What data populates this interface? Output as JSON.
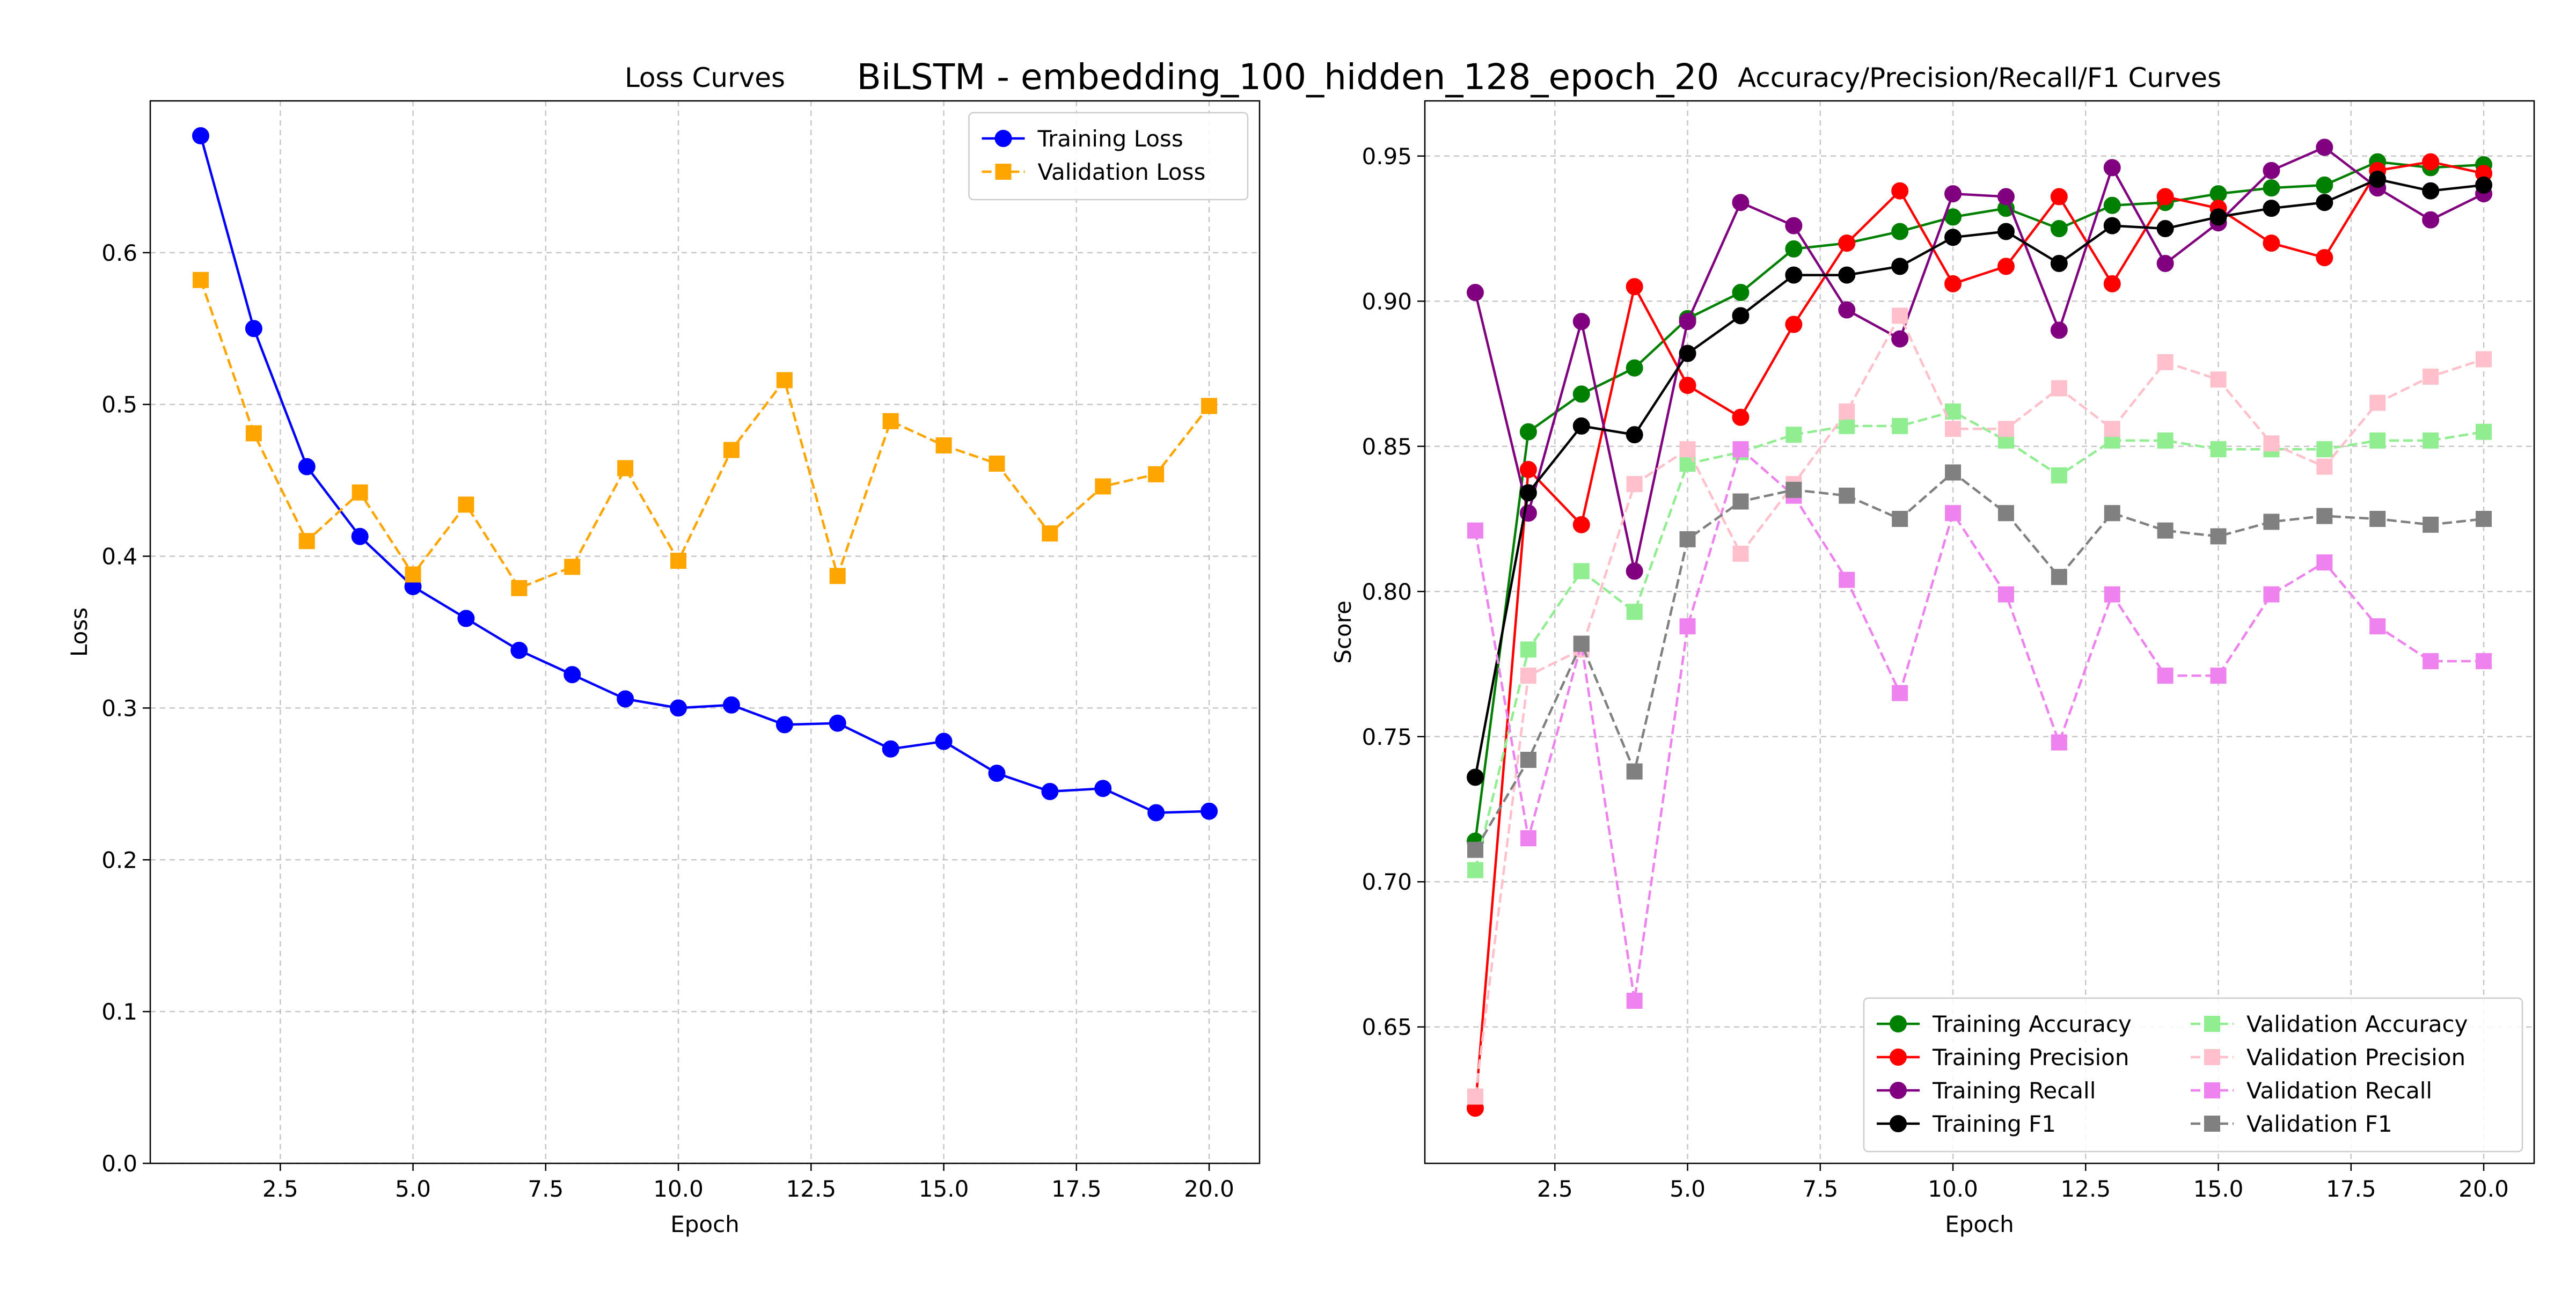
{
  "figure": {
    "suptitle": "BiLSTM - embedding_100_hidden_128_epoch_20"
  },
  "chart_data": [
    {
      "type": "line",
      "title": "Loss Curves",
      "xlabel": "Epoch",
      "ylabel": "Loss",
      "xlim": [
        0.05,
        20.95
      ],
      "ylim": [
        0.0,
        0.7
      ],
      "xticks": [
        2.5,
        5.0,
        7.5,
        10.0,
        12.5,
        15.0,
        17.5,
        20.0
      ],
      "xtick_labels": [
        "2.5",
        "5.0",
        "7.5",
        "10.0",
        "12.5",
        "15.0",
        "17.5",
        "20.0"
      ],
      "yticks": [
        0.0,
        0.1,
        0.2,
        0.3,
        0.4,
        0.5,
        0.6
      ],
      "ytick_labels": [
        "0.0",
        "0.1",
        "0.2",
        "0.3",
        "0.4",
        "0.5",
        "0.6"
      ],
      "grid": true,
      "legend_position": "top-right",
      "legend_columns": 1,
      "x": [
        1,
        2,
        3,
        4,
        5,
        6,
        7,
        8,
        9,
        10,
        11,
        12,
        13,
        14,
        15,
        16,
        17,
        18,
        19,
        20
      ],
      "series": [
        {
          "name": "Training Loss",
          "color": "#0000ff",
          "marker": "circle",
          "dashed": false,
          "values": [
            0.677,
            0.55,
            0.459,
            0.413,
            0.38,
            0.359,
            0.338,
            0.322,
            0.306,
            0.3,
            0.302,
            0.289,
            0.29,
            0.273,
            0.278,
            0.257,
            0.245,
            0.247,
            0.231,
            0.232
          ]
        },
        {
          "name": "Validation Loss",
          "color": "#ffa500",
          "marker": "square",
          "dashed": true,
          "values": [
            0.582,
            0.481,
            0.41,
            0.442,
            0.388,
            0.434,
            0.379,
            0.393,
            0.458,
            0.397,
            0.47,
            0.516,
            0.387,
            0.489,
            0.473,
            0.461,
            0.415,
            0.446,
            0.454,
            0.499
          ]
        }
      ]
    },
    {
      "type": "line",
      "title": "Accuracy/Precision/Recall/F1 Curves",
      "xlabel": "Epoch",
      "ylabel": "Score",
      "xlim": [
        0.05,
        20.95
      ],
      "ylim": [
        0.603,
        0.969
      ],
      "xticks": [
        2.5,
        5.0,
        7.5,
        10.0,
        12.5,
        15.0,
        17.5,
        20.0
      ],
      "xtick_labels": [
        "2.5",
        "5.0",
        "7.5",
        "10.0",
        "12.5",
        "15.0",
        "17.5",
        "20.0"
      ],
      "yticks": [
        0.65,
        0.7,
        0.75,
        0.8,
        0.85,
        0.9,
        0.95
      ],
      "ytick_labels": [
        "0.65",
        "0.70",
        "0.75",
        "0.80",
        "0.85",
        "0.90",
        "0.95"
      ],
      "grid": true,
      "legend_position": "bottom-right",
      "legend_columns": 2,
      "x": [
        1,
        2,
        3,
        4,
        5,
        6,
        7,
        8,
        9,
        10,
        11,
        12,
        13,
        14,
        15,
        16,
        17,
        18,
        19,
        20
      ],
      "series": [
        {
          "name": "Training Accuracy",
          "color": "#008000",
          "marker": "circle",
          "dashed": false,
          "values": [
            0.714,
            0.855,
            0.868,
            0.877,
            0.894,
            0.903,
            0.918,
            0.92,
            0.924,
            0.929,
            0.932,
            0.925,
            0.933,
            0.934,
            0.937,
            0.939,
            0.94,
            0.948,
            0.946,
            0.947
          ]
        },
        {
          "name": "Training Precision",
          "color": "#ff0000",
          "marker": "circle",
          "dashed": false,
          "values": [
            0.622,
            0.842,
            0.823,
            0.905,
            0.871,
            0.86,
            0.892,
            0.92,
            0.938,
            0.906,
            0.912,
            0.936,
            0.906,
            0.936,
            0.932,
            0.92,
            0.915,
            0.945,
            0.948,
            0.944
          ]
        },
        {
          "name": "Training Recall",
          "color": "#800080",
          "marker": "circle",
          "dashed": false,
          "values": [
            0.903,
            0.827,
            0.893,
            0.807,
            0.893,
            0.934,
            0.926,
            0.897,
            0.887,
            0.937,
            0.936,
            0.89,
            0.946,
            0.913,
            0.927,
            0.945,
            0.953,
            0.939,
            0.928,
            0.937
          ]
        },
        {
          "name": "Training F1",
          "color": "#000000",
          "marker": "circle",
          "dashed": false,
          "values": [
            0.736,
            0.834,
            0.857,
            0.854,
            0.882,
            0.895,
            0.909,
            0.909,
            0.912,
            0.922,
            0.924,
            0.913,
            0.926,
            0.925,
            0.929,
            0.932,
            0.934,
            0.942,
            0.938,
            0.94
          ]
        },
        {
          "name": "Validation Accuracy",
          "color": "#90ee90",
          "marker": "square",
          "dashed": true,
          "values": [
            0.704,
            0.78,
            0.807,
            0.793,
            0.844,
            0.848,
            0.854,
            0.857,
            0.857,
            0.862,
            0.852,
            0.84,
            0.852,
            0.852,
            0.849,
            0.849,
            0.849,
            0.852,
            0.852,
            0.855
          ]
        },
        {
          "name": "Validation Precision",
          "color": "#ffc0cb",
          "marker": "square",
          "dashed": true,
          "values": [
            0.626,
            0.771,
            0.78,
            0.837,
            0.849,
            0.813,
            0.837,
            0.862,
            0.895,
            0.856,
            0.856,
            0.87,
            0.856,
            0.879,
            0.873,
            0.851,
            0.843,
            0.865,
            0.874,
            0.88
          ]
        },
        {
          "name": "Validation Recall",
          "color": "#ee82ee",
          "marker": "square",
          "dashed": true,
          "values": [
            0.821,
            0.715,
            0.782,
            0.659,
            0.788,
            0.849,
            0.833,
            0.804,
            0.765,
            0.827,
            0.799,
            0.748,
            0.799,
            0.771,
            0.771,
            0.799,
            0.81,
            0.788,
            0.776,
            0.776
          ]
        },
        {
          "name": "Validation F1",
          "color": "#808080",
          "marker": "square",
          "dashed": true,
          "values": [
            0.711,
            0.742,
            0.782,
            0.738,
            0.818,
            0.831,
            0.835,
            0.833,
            0.825,
            0.841,
            0.827,
            0.805,
            0.827,
            0.821,
            0.819,
            0.824,
            0.826,
            0.825,
            0.823,
            0.825
          ]
        }
      ]
    }
  ]
}
